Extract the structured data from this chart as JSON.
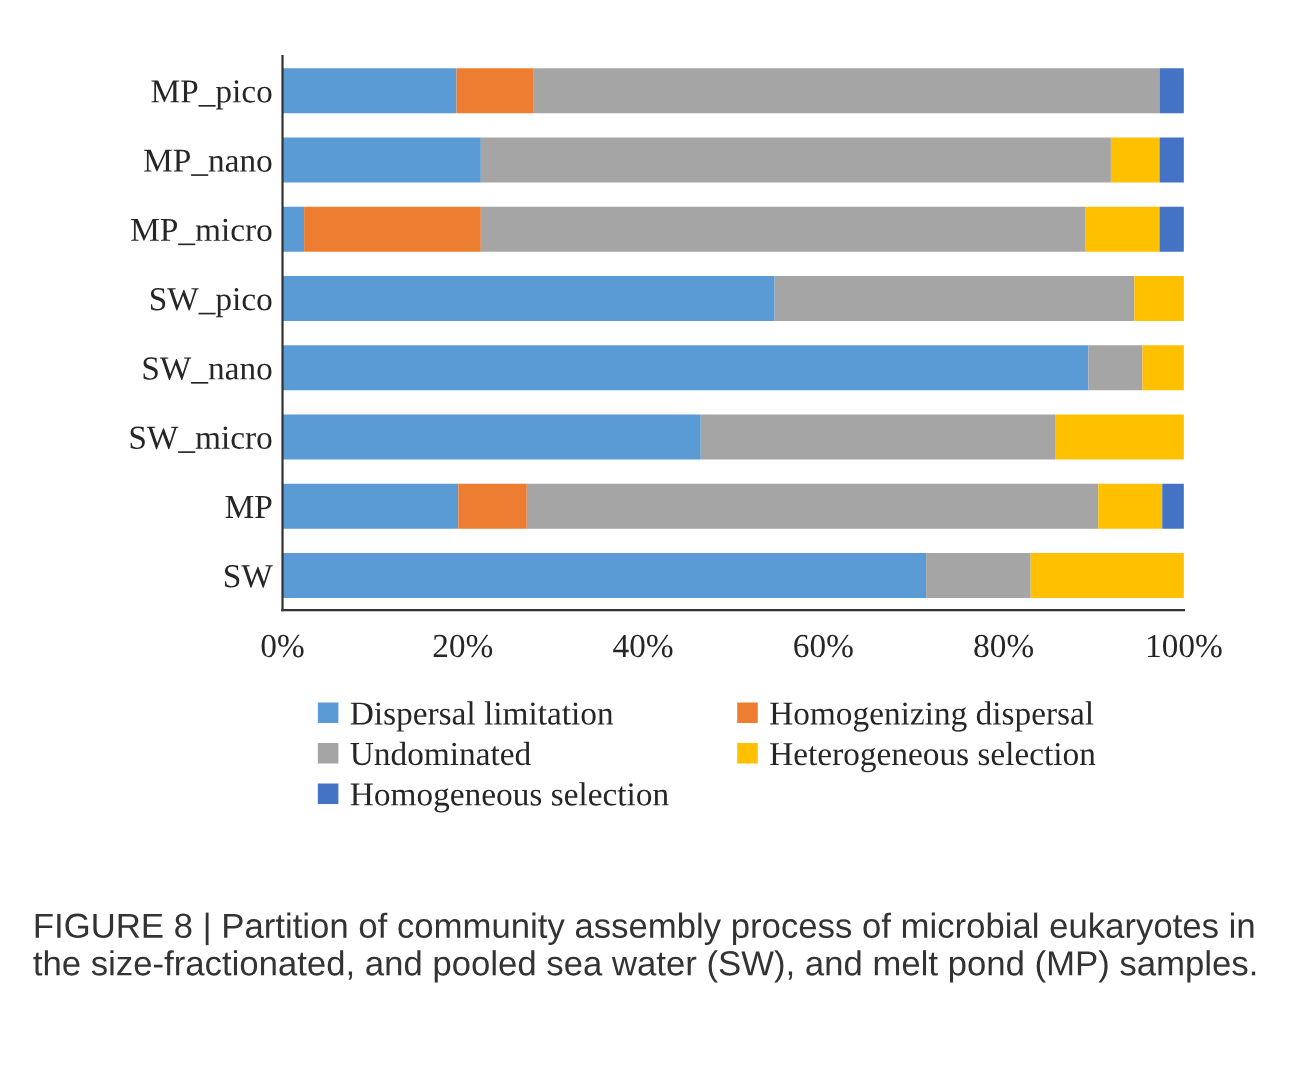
{
  "chart_data": {
    "type": "bar",
    "orientation": "horizontal",
    "stacked": true,
    "categories": [
      "MP_pico",
      "MP_nano",
      "MP_micro",
      "SW_pico",
      "SW_nano",
      "SW_micro",
      "MP",
      "SW"
    ],
    "series": [
      {
        "name": "Dispersal limitation",
        "color": "#5b9bd5",
        "values": [
          19.3,
          22.0,
          2.4,
          54.6,
          89.4,
          46.4,
          19.5,
          71.4
        ]
      },
      {
        "name": "Homogenizing dispersal",
        "color": "#ed7d31",
        "values": [
          8.5,
          null,
          19.6,
          null,
          null,
          null,
          7.6,
          null
        ]
      },
      {
        "name": "Undominated",
        "color": "#a5a5a5",
        "values": [
          69.5,
          69.9,
          67.1,
          39.9,
          6.0,
          39.3,
          63.4,
          11.6
        ]
      },
      {
        "name": "Heterogeneous selection",
        "color": "#ffc000",
        "values": [
          null,
          5.4,
          8.2,
          5.5,
          4.6,
          14.3,
          7.1,
          17.0
        ]
      },
      {
        "name": "Homogeneous selection",
        "color": "#4472c4",
        "values": [
          2.7,
          2.7,
          2.7,
          null,
          null,
          null,
          2.4,
          null
        ]
      }
    ],
    "xlim": [
      0,
      100
    ],
    "xticks": [
      {
        "value": 0,
        "label": "0%"
      },
      {
        "value": 20,
        "label": "20%"
      },
      {
        "value": 40,
        "label": "40%"
      },
      {
        "value": 60,
        "label": "60%"
      },
      {
        "value": 80,
        "label": "80%"
      },
      {
        "value": 100,
        "label": "100%"
      }
    ],
    "legend": "bottom",
    "grid": false,
    "annotations": [
      "FIGURE 8 | Partition of community assembly process of microbial eukaryotes in the size-fractionated, and pooled sea water (SW), and melt pond (MP) samples."
    ]
  }
}
